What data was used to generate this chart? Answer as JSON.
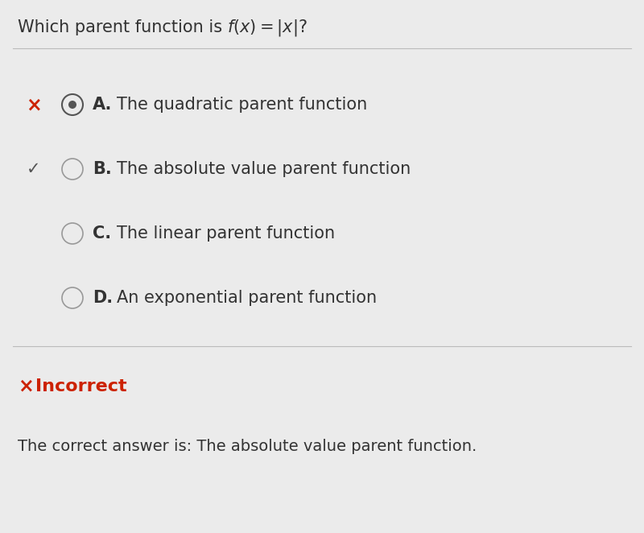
{
  "background_color": "#ebebeb",
  "title_parts": [
    "Which parent function is ",
    "$f(x) = |x|$?"
  ],
  "options": [
    {
      "label": "A.",
      "text": "The quadratic parent function",
      "radio_selected": true,
      "wrong": true,
      "correct_indicator": false
    },
    {
      "label": "B.",
      "text": "The absolute value parent function",
      "radio_selected": false,
      "wrong": false,
      "correct_indicator": true
    },
    {
      "label": "C.",
      "text": "The linear parent function",
      "radio_selected": false,
      "wrong": false,
      "correct_indicator": false
    },
    {
      "label": "D.",
      "text": "An exponential parent function",
      "radio_selected": false,
      "wrong": false,
      "correct_indicator": false
    }
  ],
  "separator_color": "#bbbbbb",
  "red_color": "#cc2200",
  "dark_gray": "#333333",
  "check_color": "#555555",
  "incorrect_text": "Incorrect",
  "correct_answer_text": "The correct answer is: The absolute value parent function.",
  "title_fontsize": 15,
  "option_fontsize": 15,
  "footer_fontsize": 14
}
